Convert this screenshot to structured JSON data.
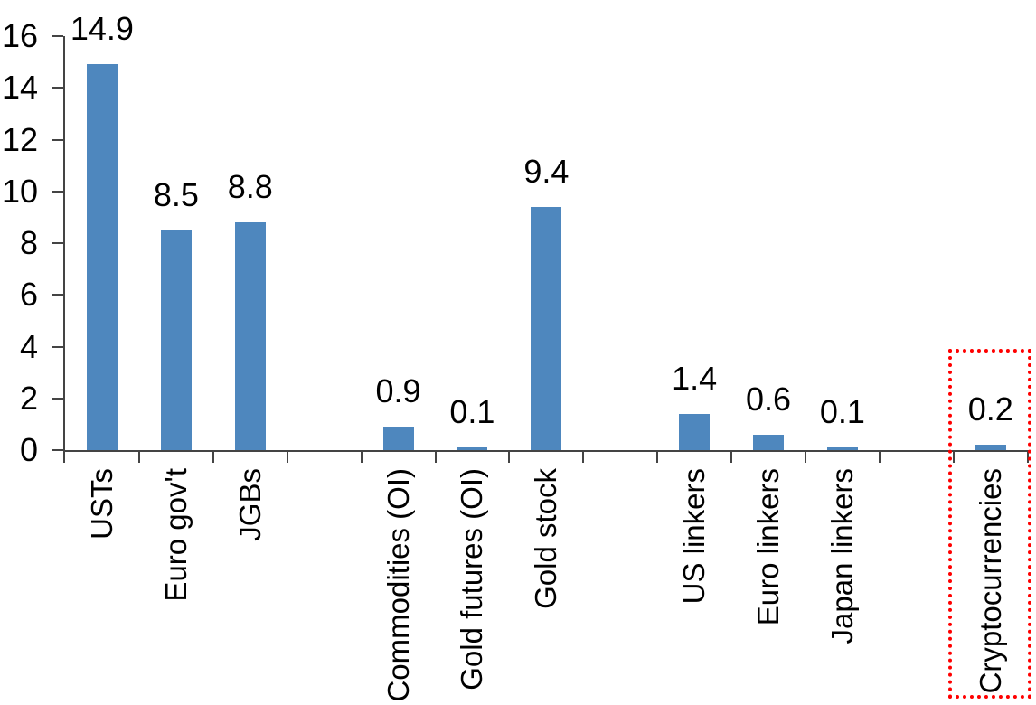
{
  "chart_data": {
    "type": "bar",
    "title": "",
    "xlabel": "",
    "ylabel": "",
    "categories": [
      "USTs",
      "Euro gov't",
      "JGBs",
      "",
      "Commodities (OI)",
      "Gold futures (OI)",
      "Gold stock",
      "",
      "US linkers",
      "Euro linkers",
      "Japan linkers",
      "",
      "Cryptocurrencies"
    ],
    "values": [
      14.9,
      8.5,
      8.8,
      null,
      0.9,
      0.1,
      9.4,
      null,
      1.4,
      0.6,
      0.1,
      null,
      0.2
    ],
    "value_labels": [
      "14.9",
      "8.5",
      "8.8",
      null,
      "0.9",
      "0.1",
      "9.4",
      null,
      "1.4",
      "0.6",
      "0.1",
      null,
      "0.2"
    ],
    "ylim": [
      0,
      16
    ],
    "yticks": [
      0,
      2,
      4,
      6,
      8,
      10,
      12,
      14,
      16
    ],
    "grid": false,
    "legend": false,
    "bar_color": "#4E87BE",
    "axis_color": "#444444",
    "text_color": "#000000",
    "highlight": {
      "category": "Cryptocurrencies",
      "border_color": "#FF0000",
      "border_style": "dotted"
    }
  }
}
